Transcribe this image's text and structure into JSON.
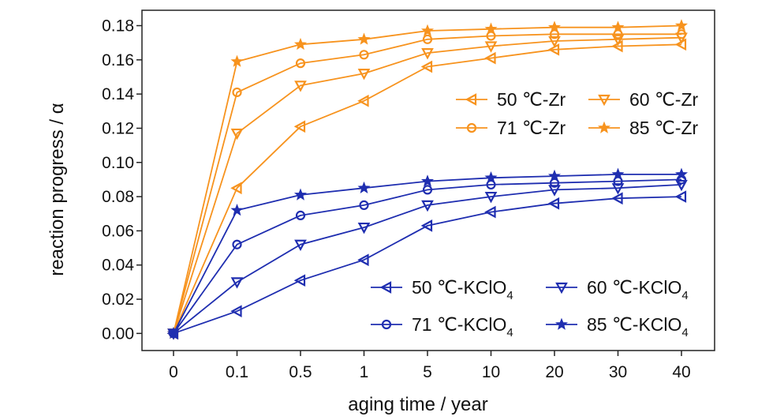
{
  "chart_data": {
    "type": "line",
    "title": "",
    "xlabel": "aging time / year",
    "ylabel": "reaction progress / α",
    "categories": [
      "0",
      "0.1",
      "0.5",
      "1",
      "5",
      "10",
      "20",
      "30",
      "40"
    ],
    "y_ticks": [
      "0.00",
      "0.02",
      "0.04",
      "0.06",
      "0.08",
      "0.10",
      "0.12",
      "0.14",
      "0.16",
      "0.18"
    ],
    "ylim": [
      -0.01,
      0.189
    ],
    "grid": false,
    "legend_placement": "inside right (two groups: Zr upper right, KClO4 lower right)",
    "colors": {
      "Zr": "#f7931e",
      "KClO4": "#1f2eb0"
    },
    "series": [
      {
        "name": "50 ℃-Zr",
        "marker": "triangle-left",
        "group": "Zr",
        "values": [
          0.0,
          0.085,
          0.121,
          0.136,
          0.156,
          0.161,
          0.166,
          0.168,
          0.169
        ]
      },
      {
        "name": "60 ℃-Zr",
        "marker": "triangle-down",
        "group": "Zr",
        "values": [
          0.0,
          0.117,
          0.145,
          0.152,
          0.164,
          0.168,
          0.171,
          0.172,
          0.173
        ]
      },
      {
        "name": "71 ℃-Zr",
        "marker": "circle",
        "group": "Zr",
        "values": [
          0.0,
          0.141,
          0.158,
          0.163,
          0.172,
          0.174,
          0.175,
          0.175,
          0.175
        ]
      },
      {
        "name": "85 ℃-Zr",
        "marker": "star",
        "group": "Zr",
        "values": [
          0.0,
          0.159,
          0.169,
          0.172,
          0.177,
          0.178,
          0.179,
          0.179,
          0.18
        ]
      },
      {
        "name": "50 ℃-KClO4",
        "marker": "triangle-left",
        "group": "KClO4",
        "values": [
          0.0,
          0.013,
          0.031,
          0.043,
          0.063,
          0.071,
          0.076,
          0.079,
          0.08
        ]
      },
      {
        "name": "60 ℃-KClO4",
        "marker": "triangle-down",
        "group": "KClO4",
        "values": [
          0.0,
          0.03,
          0.052,
          0.062,
          0.075,
          0.08,
          0.084,
          0.085,
          0.087
        ]
      },
      {
        "name": "71 ℃-KClO4",
        "marker": "circle",
        "group": "KClO4",
        "values": [
          0.0,
          0.052,
          0.069,
          0.075,
          0.084,
          0.087,
          0.088,
          0.089,
          0.09
        ]
      },
      {
        "name": "85 ℃-KClO4",
        "marker": "star",
        "group": "KClO4",
        "values": [
          0.0,
          0.072,
          0.081,
          0.085,
          0.089,
          0.091,
          0.092,
          0.093,
          0.093
        ]
      }
    ],
    "legends": {
      "zr": [
        {
          "series": 0,
          "label": "50 ℃-Zr"
        },
        {
          "series": 1,
          "label": "60 ℃-Zr"
        },
        {
          "series": 2,
          "label": "71 ℃-Zr"
        },
        {
          "series": 3,
          "label": "85 ℃-Zr"
        }
      ],
      "kclo4": [
        {
          "series": 4,
          "label": "50 ℃-KClO",
          "sub": "4"
        },
        {
          "series": 5,
          "label": "60 ℃-KClO",
          "sub": "4"
        },
        {
          "series": 6,
          "label": "71 ℃-KClO",
          "sub": "4"
        },
        {
          "series": 7,
          "label": "85 ℃-KClO",
          "sub": "4"
        }
      ]
    }
  }
}
